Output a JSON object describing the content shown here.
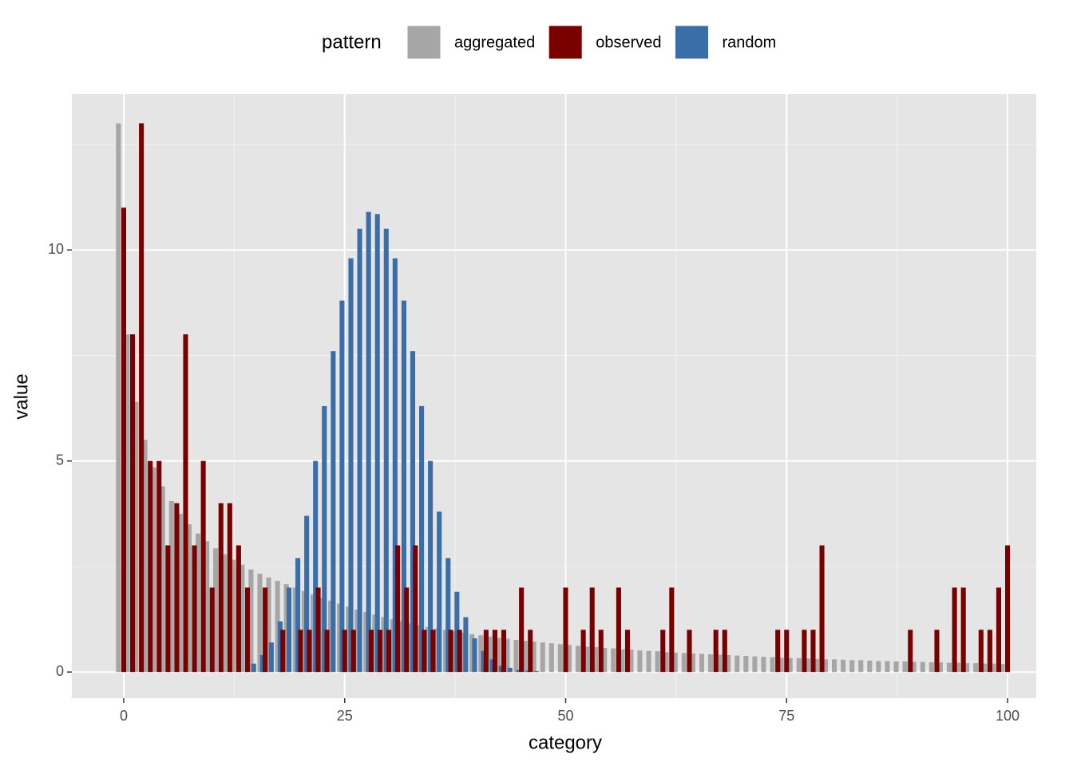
{
  "chart_data": {
    "type": "bar",
    "x_label": "category",
    "y_label": "value",
    "legend_title": "pattern",
    "legend_position": "top",
    "grid": true,
    "xlim": [
      -5.87,
      103.25
    ],
    "ylim": [
      -0.62,
      13.69
    ],
    "xticks": [
      0,
      25,
      50,
      75,
      100
    ],
    "yticks": [
      0,
      5,
      10
    ],
    "x_minor_breaks": [
      12.5,
      37.5,
      62.5,
      87.5
    ],
    "y_minor_breaks": [
      2.5,
      7.5,
      12.5
    ],
    "x": [
      0,
      1,
      2,
      3,
      4,
      5,
      6,
      7,
      8,
      9,
      10,
      11,
      12,
      13,
      14,
      15,
      16,
      17,
      18,
      19,
      20,
      21,
      22,
      23,
      24,
      25,
      26,
      27,
      28,
      29,
      30,
      31,
      32,
      33,
      34,
      35,
      36,
      37,
      38,
      39,
      40,
      41,
      42,
      43,
      44,
      45,
      46,
      47,
      48,
      49,
      50,
      51,
      52,
      53,
      54,
      55,
      56,
      57,
      58,
      59,
      60,
      61,
      62,
      63,
      64,
      65,
      66,
      67,
      68,
      69,
      70,
      71,
      72,
      73,
      74,
      75,
      76,
      77,
      78,
      79,
      80,
      81,
      82,
      83,
      84,
      85,
      86,
      87,
      88,
      89,
      90,
      91,
      92,
      93,
      94,
      95,
      96,
      97,
      98,
      99,
      100
    ],
    "series": [
      {
        "name": "aggregated",
        "color": "#a6a6a6",
        "values": [
          13,
          8,
          6.4,
          5.5,
          4.85,
          4.4,
          4.05,
          3.75,
          3.5,
          3.28,
          3.1,
          2.93,
          2.79,
          2.66,
          2.54,
          2.43,
          2.33,
          2.24,
          2.16,
          2.08,
          2.0,
          1.92,
          1.84,
          1.76,
          1.69,
          1.62,
          1.55,
          1.48,
          1.42,
          1.36,
          1.3,
          1.25,
          1.2,
          1.15,
          1.11,
          1.07,
          1.03,
          1.0,
          0.96,
          0.93,
          0.9,
          0.87,
          0.84,
          0.81,
          0.79,
          0.76,
          0.74,
          0.72,
          0.7,
          0.68,
          0.66,
          0.64,
          0.62,
          0.6,
          0.59,
          0.57,
          0.56,
          0.54,
          0.53,
          0.51,
          0.5,
          0.49,
          0.47,
          0.46,
          0.45,
          0.44,
          0.43,
          0.42,
          0.41,
          0.4,
          0.39,
          0.38,
          0.37,
          0.36,
          0.35,
          0.34,
          0.33,
          0.33,
          0.32,
          0.31,
          0.3,
          0.3,
          0.29,
          0.28,
          0.28,
          0.27,
          0.26,
          0.26,
          0.25,
          0.25,
          0.24,
          0.24,
          0.23,
          0.23,
          0.22,
          0.22,
          0.21,
          0.21,
          0.2,
          0.2,
          0.19
        ]
      },
      {
        "name": "observed",
        "color": "#7a0000",
        "values": [
          11,
          8,
          13,
          5,
          5,
          3,
          4,
          8,
          3,
          5,
          2,
          4,
          4,
          3,
          2,
          0,
          2,
          0,
          1,
          0,
          1,
          1,
          2,
          1,
          0,
          1,
          1,
          0,
          1,
          1,
          1,
          3,
          2,
          3,
          1,
          1,
          0,
          1,
          1,
          0,
          0,
          1,
          1,
          1,
          0,
          2,
          1,
          0,
          0,
          0,
          2,
          0,
          1,
          2,
          1,
          0,
          2,
          1,
          0,
          0,
          0,
          1,
          2,
          0,
          1,
          0,
          0,
          1,
          1,
          0,
          0,
          0,
          0,
          0,
          1,
          1,
          0,
          1,
          1,
          3,
          0,
          0,
          0,
          0,
          0,
          0,
          0,
          0,
          0,
          1,
          0,
          0,
          1,
          0,
          2,
          2,
          0,
          1,
          1,
          2,
          3
        ]
      },
      {
        "name": "random",
        "color": "#3a6ea8",
        "values": [
          0,
          0,
          0,
          0,
          0,
          0,
          0,
          0,
          0,
          0,
          0,
          0,
          0,
          0,
          0,
          0.2,
          0.4,
          0.7,
          1.2,
          2,
          2.7,
          3.7,
          5,
          6.3,
          7.6,
          8.8,
          9.8,
          10.5,
          10.9,
          10.85,
          10.5,
          9.8,
          8.8,
          7.6,
          6.3,
          5,
          3.8,
          2.7,
          1.9,
          1.3,
          0.8,
          0.5,
          0.3,
          0.15,
          0.1,
          0.05,
          0.03,
          0.02,
          0,
          0,
          0,
          0,
          0,
          0,
          0,
          0,
          0,
          0,
          0,
          0,
          0,
          0,
          0,
          0,
          0,
          0,
          0,
          0,
          0,
          0,
          0,
          0,
          0,
          0,
          0,
          0,
          0,
          0,
          0,
          0,
          0,
          0,
          0,
          0,
          0,
          0,
          0,
          0,
          0,
          0,
          0,
          0,
          0,
          0,
          0,
          0,
          0,
          0,
          0,
          0,
          0
        ]
      }
    ]
  }
}
